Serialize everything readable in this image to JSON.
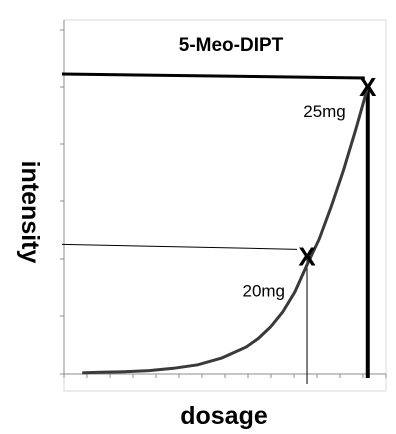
{
  "chart_data": {
    "type": "line",
    "title": "5-Meo-DIPT",
    "xlabel": "dosage",
    "ylabel": "intensity",
    "xlim": [
      0,
      26.5
    ],
    "ylim": [
      0,
      5
    ],
    "grid": false,
    "curve": {
      "x": [
        1.5,
        3,
        5,
        7,
        9,
        11,
        13,
        15,
        16,
        17,
        18,
        19,
        20,
        21,
        22,
        23,
        24,
        25
      ],
      "y": [
        0.02,
        0.03,
        0.04,
        0.06,
        0.1,
        0.16,
        0.28,
        0.47,
        0.62,
        0.82,
        1.08,
        1.43,
        1.9,
        2.35,
        2.92,
        3.55,
        4.25,
        5.0
      ]
    },
    "annotations": [
      {
        "label": "20mg",
        "x": 20,
        "y": 2.05,
        "marker": "x",
        "guide_style": "thin"
      },
      {
        "label": "25mg",
        "x": 25,
        "y": 5.0,
        "marker": "x",
        "guide_style": "thick"
      }
    ]
  }
}
